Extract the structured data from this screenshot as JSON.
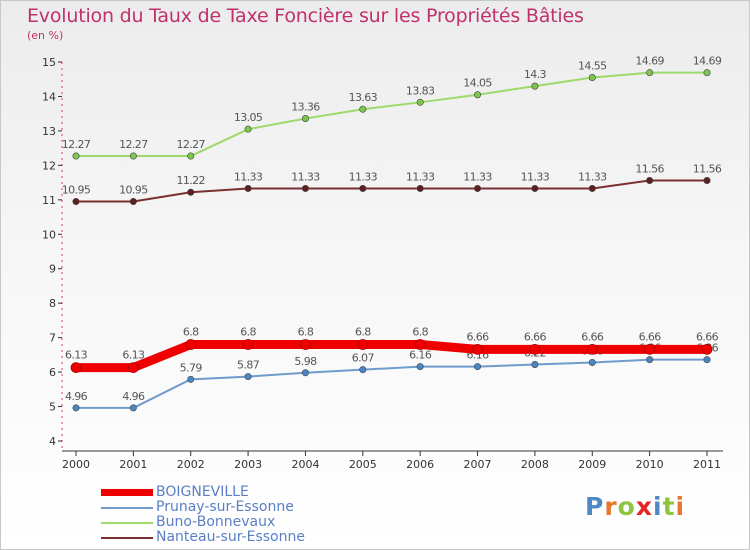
{
  "chart_data": {
    "type": "line",
    "title": "Evolution du Taux de Taxe Foncière sur les Propriétés Bâties",
    "subtitle": "(en %)",
    "categories": [
      "2000",
      "2001",
      "2002",
      "2003",
      "2004",
      "2005",
      "2006",
      "2007",
      "2008",
      "2009",
      "2010",
      "2011"
    ],
    "ylim": [
      4,
      15
    ],
    "yticks": [
      4,
      5,
      6,
      7,
      8,
      9,
      10,
      11,
      12,
      13,
      14,
      15
    ],
    "grid": false,
    "legend_position": "bottom-left",
    "series": [
      {
        "name": "Buno-Bonnevaux",
        "color": "#9ed96b",
        "marker_color": "#7cc64e",
        "values": [
          12.27,
          12.27,
          12.27,
          13.05,
          13.36,
          13.63,
          13.83,
          14.05,
          14.3,
          14.55,
          14.69,
          14.69
        ],
        "labels": [
          "12.27",
          "12.27",
          "12.27",
          "13.05",
          "13.36",
          "13.63",
          "13.83",
          "14.05",
          "14.3",
          "14.55",
          "14.69",
          "14.69"
        ]
      },
      {
        "name": "Nanteau-sur-Essonne",
        "color": "#7a3030",
        "marker_color": "#5e1f1f",
        "values": [
          10.95,
          10.95,
          11.22,
          11.33,
          11.33,
          11.33,
          11.33,
          11.33,
          11.33,
          11.33,
          11.56,
          11.56
        ],
        "labels": [
          "10.95",
          "10.95",
          "11.22",
          "11.33",
          "11.33",
          "11.33",
          "11.33",
          "11.33",
          "11.33",
          "11.33",
          "11.56",
          "11.56"
        ]
      },
      {
        "name": "Prunay-sur-Essonne",
        "color": "#6f9ccc",
        "marker_color": "#4a86c4",
        "values": [
          4.96,
          4.96,
          5.79,
          5.87,
          5.98,
          6.07,
          6.16,
          6.16,
          6.22,
          6.28,
          6.36,
          6.36
        ],
        "labels": [
          "4.96",
          "4.96",
          "5.79",
          "5.87",
          "5.98",
          "6.07",
          "6.16",
          "6.16",
          "6.22",
          "6.28",
          "6.36",
          "6.36"
        ]
      },
      {
        "name": "BOIGNEVILLE",
        "color": "#ee0000",
        "marker_color": "#ee0000",
        "values": [
          6.13,
          6.13,
          6.8,
          6.8,
          6.8,
          6.8,
          6.8,
          6.66,
          6.66,
          6.66,
          6.66,
          6.66
        ],
        "labels": [
          "6.13",
          "6.13",
          "6.8",
          "6.8",
          "6.8",
          "6.8",
          "6.8",
          "6.66",
          "6.66",
          "6.66",
          "6.66",
          "6.66"
        ]
      }
    ],
    "legend_order": [
      "BOIGNEVILLE",
      "Prunay-sur-Essonne",
      "Buno-Bonnevaux",
      "Nanteau-sur-Essonne"
    ]
  },
  "branding": {
    "logo_text": "Proxiti",
    "logo_letters": [
      "P",
      "r",
      "o",
      "x",
      "i",
      "t",
      "i"
    ],
    "logo_colors": [
      "#4f88c6",
      "#e8762c",
      "#8cc63f",
      "#e3262a",
      "#4f88c6",
      "#8cc63f",
      "#e8762c"
    ]
  }
}
